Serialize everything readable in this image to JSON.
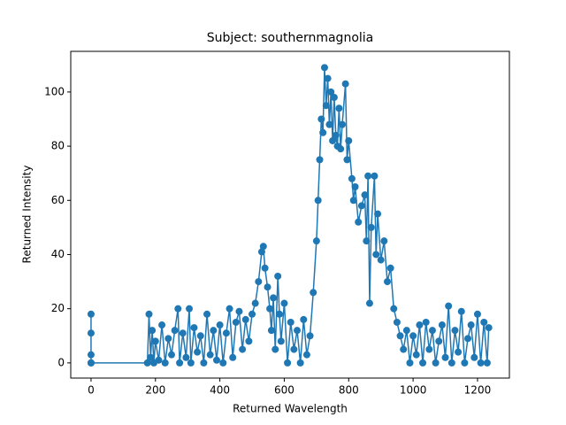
{
  "chart_data": {
    "type": "line",
    "title": "Subject: southernmagnolia",
    "xlabel": "Returned Wavelength",
    "ylabel": "Returned Intensity",
    "color": "#1f77b4",
    "markers": true,
    "grid": false,
    "xlim": [
      -63,
      1299
    ],
    "ylim": [
      -5.6,
      115
    ],
    "xticks": [
      0,
      200,
      400,
      600,
      800,
      1000,
      1200
    ],
    "yticks": [
      0,
      20,
      40,
      60,
      80,
      100
    ],
    "x": [
      0,
      0,
      0,
      0,
      0,
      175,
      180,
      185,
      190,
      195,
      200,
      210,
      220,
      230,
      240,
      250,
      260,
      270,
      275,
      285,
      295,
      305,
      310,
      320,
      330,
      340,
      350,
      360,
      370,
      380,
      390,
      400,
      410,
      420,
      430,
      440,
      450,
      460,
      470,
      480,
      490,
      500,
      510,
      520,
      530,
      535,
      540,
      548,
      555,
      560,
      566,
      572,
      580,
      585,
      590,
      600,
      610,
      620,
      630,
      640,
      650,
      660,
      670,
      680,
      690,
      700,
      705,
      710,
      715,
      720,
      725,
      730,
      735,
      740,
      745,
      750,
      755,
      760,
      765,
      770,
      775,
      780,
      790,
      795,
      800,
      810,
      815,
      820,
      830,
      840,
      850,
      855,
      860,
      865,
      870,
      880,
      885,
      890,
      900,
      910,
      920,
      930,
      940,
      950,
      960,
      970,
      980,
      990,
      1000,
      1010,
      1020,
      1030,
      1040,
      1050,
      1060,
      1070,
      1080,
      1090,
      1100,
      1110,
      1120,
      1130,
      1140,
      1150,
      1160,
      1170,
      1180,
      1190,
      1200,
      1210,
      1220,
      1230,
      1235
    ],
    "values": [
      18,
      0,
      11,
      3,
      0,
      0,
      18,
      2,
      12,
      0,
      8,
      1,
      14,
      0,
      9,
      3,
      12,
      20,
      0,
      11,
      2,
      20,
      0,
      13,
      4,
      10,
      0,
      18,
      3,
      12,
      1,
      14,
      0,
      11,
      20,
      2,
      15,
      19,
      5,
      16,
      8,
      18,
      22,
      30,
      41,
      43,
      35,
      28,
      20,
      12,
      24,
      5,
      32,
      18,
      8,
      22,
      0,
      15,
      5,
      12,
      0,
      16,
      3,
      10,
      26,
      45,
      60,
      75,
      90,
      85,
      109,
      95,
      105,
      88,
      100,
      82,
      98,
      84,
      80,
      94,
      79,
      88,
      103,
      75,
      82,
      68,
      60,
      65,
      52,
      58,
      62,
      45,
      69,
      22,
      50,
      69,
      40,
      55,
      38,
      45,
      30,
      35,
      20,
      15,
      10,
      5,
      12,
      0,
      10,
      3,
      14,
      0,
      15,
      5,
      12,
      0,
      8,
      14,
      2,
      21,
      0,
      12,
      4,
      19,
      0,
      9,
      14,
      2,
      18,
      0,
      15,
      0,
      13
    ]
  }
}
